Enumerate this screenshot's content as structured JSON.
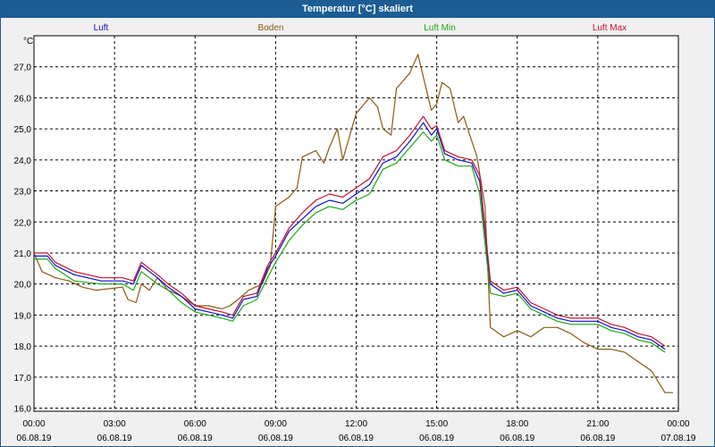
{
  "window": {
    "title": "Temperatur [°C] skaliert"
  },
  "colors": {
    "Luft": "#1010cc",
    "Boden": "#8b5a14",
    "Luft Min": "#1aa81a",
    "Luft Max": "#c81030"
  },
  "chart_data": {
    "type": "line",
    "title": "Temperatur [°C] skaliert",
    "ylabel": "°C",
    "xlabel": "",
    "ylim": [
      15.9,
      28.0
    ],
    "xlim": [
      0,
      24
    ],
    "grid": true,
    "legend": "top",
    "yticks": [
      "16,0",
      "17,0",
      "18,0",
      "19,0",
      "20,0",
      "21,0",
      "22,0",
      "23,0",
      "24,0",
      "25,0",
      "26,0",
      "27,0"
    ],
    "xticks": [
      {
        "time": "00:00",
        "date": "06.08.19"
      },
      {
        "time": "03:00",
        "date": "06.08.19"
      },
      {
        "time": "06:00",
        "date": "06.08.19"
      },
      {
        "time": "09:00",
        "date": "06.08.19"
      },
      {
        "time": "12:00",
        "date": "06.08.19"
      },
      {
        "time": "15:00",
        "date": "06.08.19"
      },
      {
        "time": "18:00",
        "date": "06.08.19"
      },
      {
        "time": "21:00",
        "date": "06.08.19"
      },
      {
        "time": "00:00",
        "date": "07.08.19"
      }
    ],
    "series": [
      {
        "name": "Luft",
        "x": [
          0,
          0.5,
          0.8,
          1.5,
          2.5,
          3.3,
          3.7,
          4.0,
          4.6,
          5.0,
          5.5,
          6.0,
          6.5,
          7.0,
          7.4,
          7.8,
          8.3,
          8.7,
          9.0,
          9.5,
          10.0,
          10.5,
          11.0,
          11.5,
          12.0,
          12.5,
          13.0,
          13.5,
          14.0,
          14.5,
          14.8,
          15.0,
          15.3,
          15.8,
          16.3,
          16.6,
          17.0,
          17.5,
          18.0,
          18.5,
          19.0,
          19.5,
          20.0,
          20.5,
          21.0,
          21.5,
          22.0,
          22.5,
          23.0,
          23.5
        ],
        "values": [
          20.9,
          20.9,
          20.6,
          20.3,
          20.1,
          20.1,
          20.0,
          20.6,
          20.2,
          19.9,
          19.6,
          19.2,
          19.1,
          19.0,
          18.9,
          19.5,
          19.6,
          20.5,
          20.9,
          21.7,
          22.1,
          22.5,
          22.7,
          22.6,
          22.9,
          23.2,
          23.9,
          24.1,
          24.6,
          25.2,
          24.8,
          25.0,
          24.2,
          24.0,
          23.9,
          23.3,
          20.0,
          19.7,
          19.8,
          19.3,
          19.1,
          18.9,
          18.8,
          18.8,
          18.8,
          18.6,
          18.5,
          18.3,
          18.2,
          17.9
        ]
      },
      {
        "name": "Boden",
        "x": [
          0,
          0.3,
          0.8,
          1.3,
          1.8,
          2.3,
          3.3,
          3.5,
          3.8,
          4.0,
          4.3,
          4.6,
          5.0,
          5.5,
          6.0,
          6.5,
          7.0,
          7.3,
          7.6,
          8.0,
          8.5,
          8.8,
          9.0,
          9.5,
          9.8,
          10.0,
          10.5,
          10.8,
          11.0,
          11.3,
          11.5,
          11.8,
          12.0,
          12.5,
          12.8,
          13.0,
          13.3,
          13.5,
          14.0,
          14.3,
          14.8,
          15.0,
          15.2,
          15.5,
          15.8,
          16.0,
          16.5,
          16.8,
          17.0,
          17.5,
          18.0,
          18.5,
          19.0,
          19.5,
          20.0,
          20.5,
          21.0,
          21.5,
          22.0,
          22.5,
          23.0,
          23.5,
          23.8
        ],
        "values": [
          21.0,
          20.4,
          20.2,
          20.1,
          19.9,
          19.8,
          19.9,
          19.5,
          19.4,
          20.0,
          19.8,
          20.2,
          19.8,
          19.6,
          19.3,
          19.3,
          19.2,
          19.3,
          19.5,
          19.8,
          20.0,
          20.6,
          22.5,
          22.8,
          23.1,
          24.1,
          24.3,
          23.9,
          24.4,
          25.0,
          24.0,
          24.9,
          25.5,
          26.0,
          25.7,
          25.0,
          24.8,
          26.3,
          26.8,
          27.4,
          25.6,
          25.8,
          26.5,
          26.3,
          25.2,
          25.4,
          24.1,
          22.5,
          18.6,
          18.3,
          18.5,
          18.3,
          18.6,
          18.6,
          18.4,
          18.1,
          17.9,
          17.9,
          17.8,
          17.5,
          17.2,
          16.5,
          16.5
        ]
      },
      {
        "name": "Luft Min",
        "x": [
          0,
          0.5,
          0.8,
          1.5,
          2.5,
          3.3,
          3.7,
          4.0,
          4.6,
          5.0,
          5.5,
          6.0,
          6.5,
          7.0,
          7.4,
          7.8,
          8.3,
          8.7,
          9.0,
          9.5,
          10.0,
          10.5,
          11.0,
          11.5,
          12.0,
          12.5,
          13.0,
          13.5,
          14.0,
          14.5,
          14.8,
          15.0,
          15.3,
          15.8,
          16.3,
          16.6,
          17.0,
          17.5,
          18.0,
          18.5,
          19.0,
          19.5,
          20.0,
          20.5,
          21.0,
          21.5,
          22.0,
          22.5,
          23.0,
          23.5
        ],
        "values": [
          20.8,
          20.8,
          20.5,
          20.1,
          20.0,
          20.0,
          19.8,
          20.4,
          20.0,
          19.8,
          19.4,
          19.1,
          19.0,
          18.9,
          18.8,
          19.3,
          19.5,
          20.2,
          20.7,
          21.4,
          21.9,
          22.3,
          22.5,
          22.4,
          22.7,
          22.9,
          23.7,
          23.9,
          24.4,
          24.9,
          24.6,
          24.8,
          24.0,
          23.8,
          23.8,
          22.9,
          19.7,
          19.6,
          19.7,
          19.2,
          19.0,
          18.8,
          18.7,
          18.7,
          18.7,
          18.5,
          18.4,
          18.2,
          18.1,
          17.8
        ]
      },
      {
        "name": "Luft Max",
        "x": [
          0,
          0.5,
          0.8,
          1.5,
          2.5,
          3.3,
          3.7,
          4.0,
          4.6,
          5.0,
          5.5,
          6.0,
          6.5,
          7.0,
          7.4,
          7.8,
          8.3,
          8.7,
          9.0,
          9.5,
          10.0,
          10.5,
          11.0,
          11.5,
          12.0,
          12.5,
          13.0,
          13.5,
          14.0,
          14.5,
          14.8,
          15.0,
          15.3,
          15.8,
          16.3,
          16.6,
          17.0,
          17.5,
          18.0,
          18.5,
          19.0,
          19.5,
          20.0,
          20.5,
          21.0,
          21.5,
          22.0,
          22.5,
          23.0,
          23.5
        ],
        "values": [
          21.0,
          21.0,
          20.7,
          20.4,
          20.2,
          20.2,
          20.1,
          20.7,
          20.3,
          20.0,
          19.7,
          19.3,
          19.2,
          19.1,
          19.0,
          19.6,
          19.7,
          20.6,
          21.0,
          21.8,
          22.3,
          22.7,
          22.9,
          22.8,
          23.1,
          23.4,
          24.1,
          24.3,
          24.8,
          25.4,
          25.0,
          25.1,
          24.3,
          24.1,
          24.0,
          23.5,
          20.1,
          19.8,
          19.9,
          19.4,
          19.2,
          19.0,
          18.9,
          18.9,
          18.9,
          18.7,
          18.6,
          18.4,
          18.3,
          18.0
        ]
      }
    ]
  }
}
